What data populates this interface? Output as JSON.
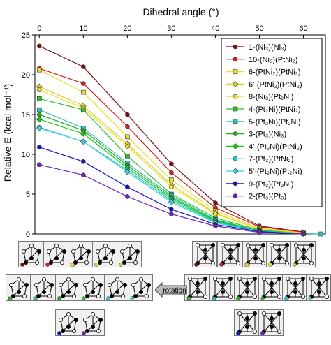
{
  "chart_data": {
    "type": "line",
    "xlabel": "Dihedral angle (°)",
    "ylabel": "Relative E (kcal mol⁻¹)",
    "x": [
      0,
      10,
      20,
      30,
      40,
      50,
      60,
      64
    ],
    "xlim": [
      -1,
      65
    ],
    "ylim": [
      0,
      25
    ],
    "xticks": [
      0,
      10,
      20,
      30,
      40,
      50,
      60
    ],
    "yticks": [
      0,
      5,
      10,
      15,
      20,
      25
    ],
    "legend_position": "right",
    "series": [
      {
        "name": "1-(Ni₃)(Ni₃)",
        "color": "#7a0f0f",
        "marker": "circle",
        "values": [
          23.6,
          21.0,
          15.0,
          8.8,
          3.9,
          1.0,
          0.25,
          null
        ]
      },
      {
        "name": "10-(Ni₃)(PtNi₂)",
        "color": "#d42020",
        "marker": "circle",
        "values": [
          20.8,
          18.9,
          13.5,
          7.7,
          3.3,
          0.9,
          0.2,
          null
        ]
      },
      {
        "name": "6-(PtNi₂)(PtNi₂)",
        "color": "#e8e030",
        "marker": "square",
        "values": [
          20.6,
          17.8,
          12.2,
          6.8,
          2.9,
          0.7,
          0.15,
          null
        ]
      },
      {
        "name": "6'-(PtNi₂)(PtNi₂)",
        "color": "#d8d020",
        "marker": "diamond",
        "values": [
          18.5,
          16.1,
          11.3,
          6.2,
          2.6,
          0.6,
          0.1,
          null
        ]
      },
      {
        "name": "8-(Ni₃)(Pt₂Ni)",
        "color": "#f2e020",
        "marker": "circle",
        "values": [
          18.1,
          15.8,
          11.0,
          5.9,
          2.5,
          0.6,
          0.1,
          null
        ]
      },
      {
        "name": "4-(Pt₂Ni)(PtNi₂)",
        "color": "#30c030",
        "marker": "square",
        "values": [
          17.0,
          15.6,
          9.8,
          5.0,
          2.0,
          0.5,
          0.05,
          null
        ]
      },
      {
        "name": "5-(Pt₂Ni)(Pt₂Ni)",
        "color": "#30c0c0",
        "marker": "square",
        "values": [
          15.6,
          13.3,
          8.9,
          4.8,
          1.8,
          0.4,
          0.05,
          0.0
        ]
      },
      {
        "name": "3-(Pt₃)(Ni₃)",
        "color": "#20b020",
        "marker": "circle",
        "values": [
          15.0,
          13.0,
          8.6,
          4.6,
          1.7,
          0.4,
          0.05,
          null
        ]
      },
      {
        "name": "4'-(Pt₂Ni)(PtNi₂)",
        "color": "#10d010",
        "marker": "diamond",
        "values": [
          14.4,
          12.6,
          8.3,
          4.4,
          1.6,
          0.35,
          0.05,
          null
        ]
      },
      {
        "name": "7-(Pt₃)(PtNi₂)",
        "color": "#20d0d0",
        "marker": "circle",
        "values": [
          13.4,
          11.6,
          8.0,
          4.2,
          1.5,
          0.35,
          0.05,
          null
        ]
      },
      {
        "name": "5'-(Pt₂Ni)(Pt₂Ni)",
        "color": "#40d0e0",
        "marker": "diamond",
        "values": [
          13.3,
          11.6,
          7.8,
          4.0,
          1.4,
          0.3,
          0.05,
          null
        ]
      },
      {
        "name": "9-(Pt₃)(Pt₂Ni)",
        "color": "#1010c0",
        "marker": "circle",
        "values": [
          10.9,
          9.1,
          5.9,
          3.1,
          1.2,
          0.3,
          0.0,
          null
        ]
      },
      {
        "name": "2-(Pt₃)(Pt₃)",
        "color": "#7020c0",
        "marker": "circle",
        "values": [
          8.7,
          7.4,
          4.7,
          2.5,
          1.0,
          0.2,
          0.0,
          null
        ]
      }
    ]
  },
  "rotation_label": "rotation"
}
